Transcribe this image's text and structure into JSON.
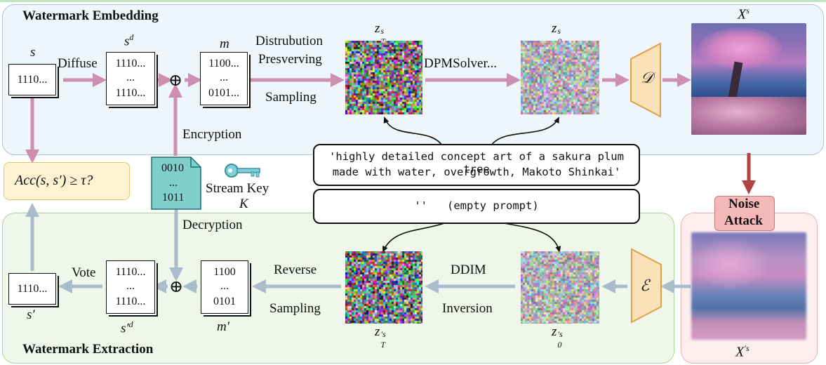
{
  "panels": {
    "embedding_title": "Watermark Embedding",
    "extraction_title": "Watermark Extraction"
  },
  "docs": {
    "s": {
      "label": "s",
      "lines": [
        "1110..."
      ]
    },
    "sd": {
      "label": "s",
      "label_sup": "d",
      "lines": [
        "1110...",
        "...",
        "1110..."
      ]
    },
    "m": {
      "label": "m",
      "lines": [
        "1100...",
        "...",
        "0101..."
      ]
    },
    "key": {
      "lines": [
        "0010",
        "...",
        "1011"
      ]
    },
    "s_prime": {
      "label": "s′",
      "lines": [
        "1110..."
      ]
    },
    "s_prime_d": {
      "label": "s′",
      "label_sup": "d",
      "lines": [
        "1110...",
        "...",
        "1110..."
      ]
    },
    "m_prime": {
      "label": "m′",
      "lines": [
        "1100",
        "...",
        "0101"
      ]
    }
  },
  "labels": {
    "diffuse": "Diffuse",
    "distribution_line1": "Distrubution",
    "distribution_line2": "Presverving",
    "sampling": "Sampling",
    "dpmsolver": "DPMSolver...",
    "encryption": "Encryption",
    "decryption": "Decryption",
    "stream_key": "Stream Key",
    "stream_key_var": "K",
    "vote": "Vote",
    "reverse": "Reverse",
    "reverse_sampling": "Sampling",
    "ddim": "DDIM",
    "inversion": "Inversion",
    "noise_attack_line1": "Noise",
    "noise_attack_line2": "Attack",
    "acc": "Acc(s, s′) ≥ τ?",
    "xor": "⊕",
    "decoder": "𝒟",
    "encoder": "ℰ"
  },
  "latents": {
    "zTs": {
      "base": "z",
      "sup": "s",
      "sub": "T"
    },
    "z0s": {
      "base": "z",
      "sup": "s",
      "sub": "0"
    },
    "zTs_prime": {
      "base": "z",
      "sup": "′s",
      "sub": "T"
    },
    "z0s_prime": {
      "base": "z",
      "sup": "′s",
      "sub": "0"
    }
  },
  "images": {
    "xs": {
      "base": "X",
      "sup": "s"
    },
    "xs_prime": {
      "base": "X",
      "sup": "′s"
    }
  },
  "prompts": {
    "text_prompt_line1": "'highly detailed concept art of a sakura plum tree",
    "text_prompt_line2": "made with water, overgrowth,  Makoto Shinkai'",
    "empty_prompt": "''   (empty prompt)"
  },
  "colors": {
    "embed_bg": "#eef5fb",
    "embed_border": "#a9c6e0",
    "extract_bg": "#eef7ea",
    "extract_border": "#a9d49a",
    "attack_bg": "#fdeeee",
    "attack_border": "#eab0b0",
    "pink_arrow": "#cc8fb1",
    "grey_arrow": "#a9bccc",
    "red_arrow": "#b34444",
    "acc_bg": "#fdf3d2",
    "acc_border": "#e5c766",
    "key_fill": "#7fcfcb",
    "key_border": "#1f6f73",
    "coder_fill": "#fbe1b8",
    "coder_border": "#e0a04a",
    "noise_badge": "#f4b8b8"
  },
  "icons": [
    "key-icon",
    "xor-icon",
    "decoder-icon",
    "encoder-icon"
  ]
}
